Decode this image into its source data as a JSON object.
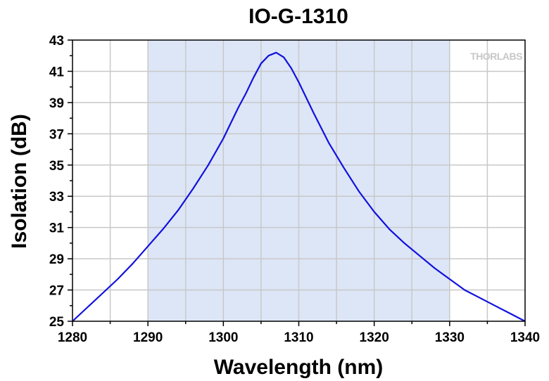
{
  "chart_data": {
    "type": "line",
    "title": "IO-G-1310",
    "xlabel": "Wavelength (nm)",
    "ylabel": "Isolation (dB)",
    "xlim": [
      1280,
      1340
    ],
    "ylim": [
      25,
      43
    ],
    "x_ticks": [
      "1280",
      "1290",
      "1300",
      "1310",
      "1320",
      "1330",
      "1340"
    ],
    "y_ticks": [
      "25",
      "27",
      "29",
      "31",
      "33",
      "35",
      "37",
      "39",
      "41",
      "43"
    ],
    "grid": true,
    "shaded_band": {
      "x_range": [
        1290,
        1330
      ],
      "color": "#dde6f7"
    },
    "series": [
      {
        "color": "#1111dd",
        "x": [
          1280,
          1282,
          1284,
          1286,
          1288,
          1290,
          1292,
          1294,
          1296,
          1298,
          1300,
          1302,
          1303,
          1304,
          1305,
          1306,
          1307,
          1308,
          1309,
          1310,
          1312,
          1314,
          1316,
          1318,
          1320,
          1322,
          1324,
          1326,
          1328,
          1330,
          1332,
          1334,
          1336,
          1338,
          1340
        ],
        "y": [
          25.0,
          25.9,
          26.8,
          27.7,
          28.7,
          29.8,
          30.9,
          32.1,
          33.5,
          35.0,
          36.7,
          38.7,
          39.6,
          40.6,
          41.5,
          42.0,
          42.2,
          41.9,
          41.2,
          40.3,
          38.3,
          36.4,
          34.8,
          33.3,
          32.0,
          30.9,
          30.0,
          29.2,
          28.4,
          27.7,
          27.0,
          26.5,
          26.0,
          25.5,
          25.0
        ]
      }
    ]
  },
  "watermark": "THORLABS"
}
